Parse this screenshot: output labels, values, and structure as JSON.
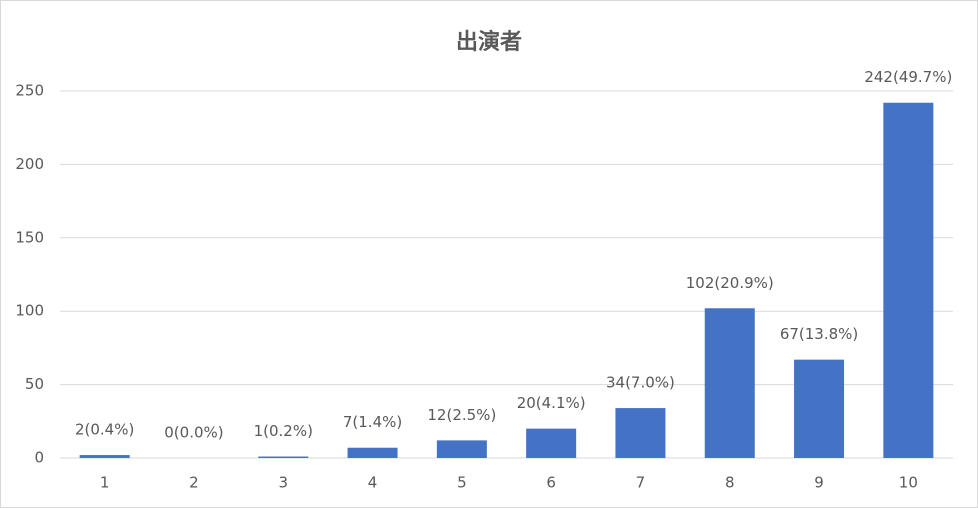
{
  "chart_data": {
    "type": "bar",
    "title": "出演者",
    "categories": [
      "1",
      "2",
      "3",
      "4",
      "5",
      "6",
      "7",
      "8",
      "9",
      "10"
    ],
    "values": [
      2,
      0,
      1,
      7,
      12,
      20,
      34,
      102,
      67,
      242
    ],
    "value_labels": [
      "2(0.4%)",
      "0(0.0%)",
      "1(0.2%)",
      "7(1.4%)",
      "12(2.5%)",
      "20(4.1%)",
      "34(7.0%)",
      "102(20.9%)",
      "67(13.8%)",
      "242(49.7%)"
    ],
    "color": "#4472c4",
    "ylim": [
      0,
      250
    ],
    "yticks": [
      0,
      50,
      100,
      150,
      200,
      250
    ],
    "grid": true
  }
}
